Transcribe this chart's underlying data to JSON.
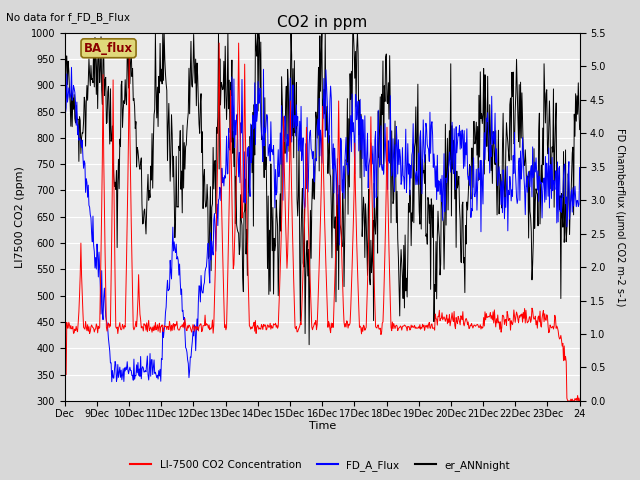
{
  "title": "CO2 in ppm",
  "top_left_text": "No data for f_FD_B_Flux",
  "box_label": "BA_flux",
  "xlabel": "Time",
  "ylabel_left": "LI7500 CO2 (ppm)",
  "ylabel_right": "FD Chamberflux (μmol CO2 m-2 s-1)",
  "ylim_left": [
    300,
    1000
  ],
  "ylim_right": [
    0.0,
    5.5
  ],
  "yticks_left": [
    300,
    350,
    400,
    450,
    500,
    550,
    600,
    650,
    700,
    750,
    800,
    850,
    900,
    950,
    1000
  ],
  "yticks_right": [
    0.0,
    0.5,
    1.0,
    1.5,
    2.0,
    2.5,
    3.0,
    3.5,
    4.0,
    4.5,
    5.0,
    5.5
  ],
  "xtick_labels": [
    "Dec",
    "9Dec",
    "10Dec",
    "11Dec",
    "12Dec",
    "13Dec",
    "14Dec",
    "15Dec",
    "16Dec",
    "17Dec",
    "18Dec",
    "19Dec",
    "20Dec",
    "21Dec",
    "22Dec",
    "23Dec",
    "24"
  ],
  "legend": [
    {
      "label": "LI-7500 CO2 Concentration",
      "color": "red",
      "lw": 1.2
    },
    {
      "label": "FD_A_Flux",
      "color": "blue",
      "lw": 1.2
    },
    {
      "label": "er_ANNnight",
      "color": "black",
      "lw": 1.2
    }
  ],
  "bg_color": "#d8d8d8",
  "plot_bg_color": "#ebebeb",
  "grid_color": "white",
  "n_days": 16,
  "n_pts_per_day": 48,
  "seed": 42
}
